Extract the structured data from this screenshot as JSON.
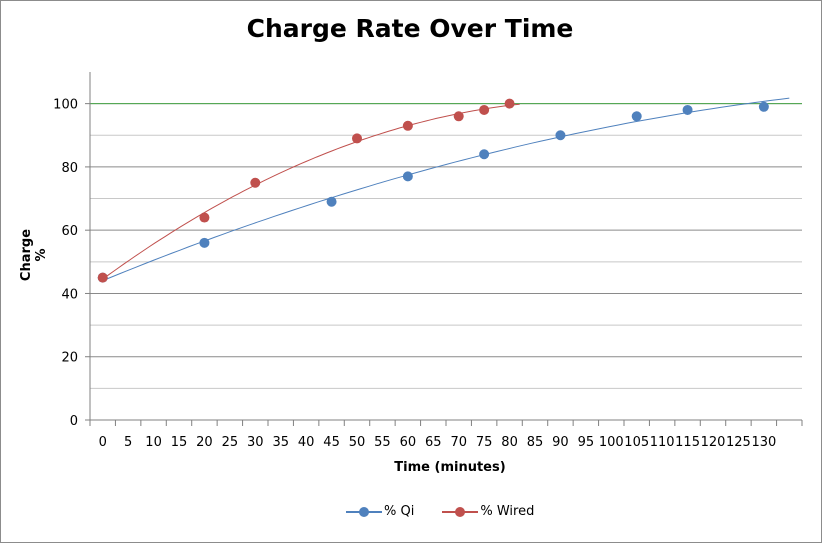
{
  "chart_data": {
    "type": "scatter",
    "title": "Charge Rate Over Time",
    "xlabel": "Time (minutes)",
    "ylabel": "Charge %",
    "xlim": [
      -2.5,
      137.5
    ],
    "ylim": [
      0,
      110
    ],
    "x_ticks": [
      "0",
      "5",
      "10",
      "15",
      "20",
      "25",
      "30",
      "35",
      "40",
      "45",
      "50",
      "55",
      "60",
      "65",
      "70",
      "75",
      "80",
      "85",
      "90",
      "95",
      "100",
      "105",
      "110",
      "115",
      "120",
      "125",
      "130"
    ],
    "y_ticks": [
      "0",
      "20",
      "40",
      "60",
      "80",
      "100"
    ],
    "minor_gridlines": [
      10,
      30,
      50,
      70,
      90
    ],
    "reference_line": {
      "y": 100,
      "color": "#4aa84a"
    },
    "legend_position": "bottom",
    "trendlines": true,
    "series": [
      {
        "name": "% Qi",
        "color": "#4f81bd",
        "x": [
          0,
          20,
          45,
          60,
          75,
          90,
          105,
          115,
          130
        ],
        "y": [
          45,
          56,
          69,
          77,
          84,
          90,
          96,
          98,
          99
        ],
        "trend": {
          "x": [
            0,
            135
          ]
        }
      },
      {
        "name": "% Wired",
        "color": "#c0504d",
        "x": [
          0,
          20,
          30,
          50,
          60,
          70,
          75,
          80
        ],
        "y": [
          45,
          64,
          75,
          89,
          93,
          96,
          98,
          100
        ],
        "trend": {
          "x": [
            0,
            82
          ]
        }
      }
    ]
  }
}
